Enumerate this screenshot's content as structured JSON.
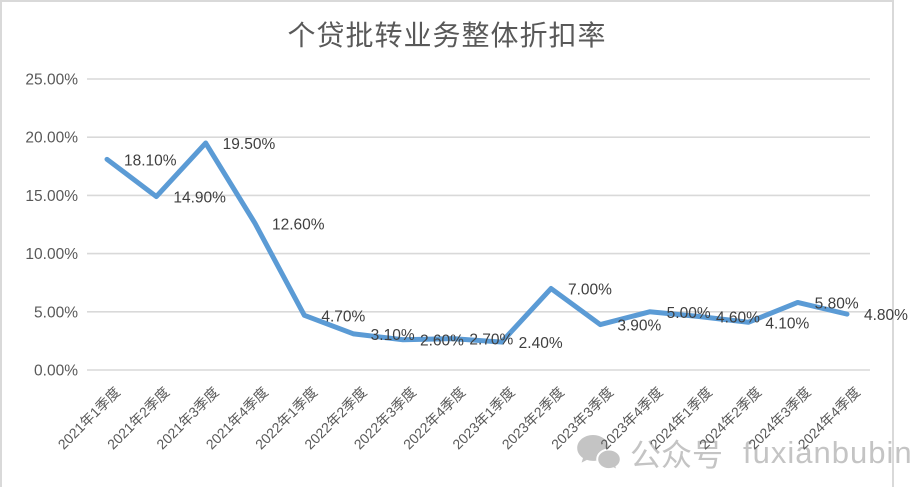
{
  "title": "个贷批转业务整体折扣率",
  "watermark": {
    "wechat_label": "公众号",
    "handle": "fuxianbubin"
  },
  "colors": {
    "line": "#5b9bd5",
    "grid": "#d9d9d9",
    "axis_text": "#595959",
    "data_label": "#3f3f3f",
    "title_text": "#595959",
    "watermark": "#c4c4c4",
    "border": "#d9d9d9",
    "background": "#ffffff"
  },
  "chart_data": {
    "type": "line",
    "title": "个贷批转业务整体折扣率",
    "categories": [
      "2021年1季度",
      "2021年2季度",
      "2021年3季度",
      "2021年4季度",
      "2022年1季度",
      "2022年2季度",
      "2022年3季度",
      "2022年4季度",
      "2023年1季度",
      "2023年2季度",
      "2023年3季度",
      "2023年4季度",
      "2024年1季度",
      "2024年2季度",
      "2024年3季度",
      "2024年4季度"
    ],
    "values": [
      18.1,
      14.9,
      19.5,
      12.6,
      4.7,
      3.1,
      2.6,
      2.7,
      2.4,
      7.0,
      3.9,
      5.0,
      4.6,
      4.1,
      5.8,
      4.8
    ],
    "data_labels": [
      "18.10%",
      "14.90%",
      "19.50%",
      "12.60%",
      "4.70%",
      "3.10%",
      "2.60%",
      "2.70%",
      "2.40%",
      "7.00%",
      "3.90%",
      "5.00%",
      "4.60%",
      "4.10%",
      "5.80%",
      "4.80%"
    ],
    "xlabel": "",
    "ylabel": "",
    "ylim": [
      0,
      25
    ],
    "yticks": [
      "0.00%",
      "5.00%",
      "10.00%",
      "15.00%",
      "20.00%",
      "25.00%"
    ],
    "grid": true,
    "legend": "none"
  }
}
